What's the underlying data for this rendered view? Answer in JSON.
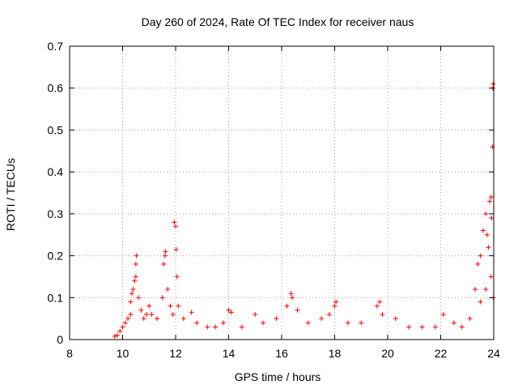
{
  "chart_data": {
    "type": "scatter",
    "title": "Day 260 of 2024, Rate Of TEC Index for receiver naus",
    "xlabel": "GPS time / hours",
    "ylabel": "ROTI / TECUs",
    "xlim": [
      8,
      24
    ],
    "ylim": [
      0,
      0.7
    ],
    "xticks": [
      "8",
      "10",
      "12",
      "14",
      "16",
      "18",
      "20",
      "22",
      "24"
    ],
    "yticks": [
      "0",
      "0.1",
      "0.2",
      "0.3",
      "0.4",
      "0.5",
      "0.6",
      "0.7"
    ],
    "grid": true,
    "marker": "+",
    "color": "#ff0000",
    "series": [
      {
        "name": "ROTI",
        "points": [
          [
            9.7,
            0.008
          ],
          [
            9.8,
            0.01
          ],
          [
            9.9,
            0.02
          ],
          [
            10.0,
            0.03
          ],
          [
            10.1,
            0.04
          ],
          [
            10.2,
            0.05
          ],
          [
            10.3,
            0.06
          ],
          [
            10.3,
            0.09
          ],
          [
            10.35,
            0.11
          ],
          [
            10.4,
            0.12
          ],
          [
            10.45,
            0.14
          ],
          [
            10.5,
            0.15
          ],
          [
            10.5,
            0.18
          ],
          [
            10.52,
            0.2
          ],
          [
            10.6,
            0.1
          ],
          [
            10.7,
            0.07
          ],
          [
            10.8,
            0.05
          ],
          [
            10.9,
            0.06
          ],
          [
            11.0,
            0.08
          ],
          [
            11.1,
            0.06
          ],
          [
            11.3,
            0.05
          ],
          [
            11.5,
            0.1
          ],
          [
            11.55,
            0.18
          ],
          [
            11.6,
            0.2
          ],
          [
            11.62,
            0.21
          ],
          [
            11.7,
            0.12
          ],
          [
            11.8,
            0.08
          ],
          [
            11.9,
            0.06
          ],
          [
            11.95,
            0.28
          ],
          [
            12.0,
            0.27
          ],
          [
            12.02,
            0.215
          ],
          [
            12.05,
            0.15
          ],
          [
            12.1,
            0.08
          ],
          [
            12.3,
            0.05
          ],
          [
            12.6,
            0.065
          ],
          [
            12.8,
            0.04
          ],
          [
            13.2,
            0.03
          ],
          [
            13.5,
            0.03
          ],
          [
            13.8,
            0.04
          ],
          [
            14.0,
            0.07
          ],
          [
            14.1,
            0.065
          ],
          [
            14.5,
            0.03
          ],
          [
            15.0,
            0.06
          ],
          [
            15.3,
            0.04
          ],
          [
            15.8,
            0.05
          ],
          [
            16.2,
            0.08
          ],
          [
            16.35,
            0.11
          ],
          [
            16.4,
            0.1
          ],
          [
            16.6,
            0.07
          ],
          [
            17.0,
            0.04
          ],
          [
            17.5,
            0.05
          ],
          [
            17.8,
            0.06
          ],
          [
            18.0,
            0.08
          ],
          [
            18.05,
            0.09
          ],
          [
            18.5,
            0.04
          ],
          [
            19.0,
            0.04
          ],
          [
            19.6,
            0.08
          ],
          [
            19.7,
            0.09
          ],
          [
            19.8,
            0.06
          ],
          [
            20.3,
            0.05
          ],
          [
            20.8,
            0.03
          ],
          [
            21.3,
            0.03
          ],
          [
            21.8,
            0.03
          ],
          [
            22.1,
            0.06
          ],
          [
            22.5,
            0.04
          ],
          [
            22.8,
            0.03
          ],
          [
            23.1,
            0.05
          ],
          [
            23.3,
            0.12
          ],
          [
            23.4,
            0.18
          ],
          [
            23.5,
            0.2
          ],
          [
            23.6,
            0.26
          ],
          [
            23.7,
            0.3
          ],
          [
            23.75,
            0.25
          ],
          [
            23.8,
            0.22
          ],
          [
            23.85,
            0.33
          ],
          [
            23.9,
            0.34
          ],
          [
            23.92,
            0.29
          ],
          [
            23.95,
            0.46
          ],
          [
            23.97,
            0.6
          ],
          [
            23.98,
            0.61
          ],
          [
            23.99,
            0.1
          ],
          [
            23.5,
            0.09
          ],
          [
            23.7,
            0.12
          ],
          [
            23.9,
            0.15
          ]
        ]
      }
    ]
  }
}
